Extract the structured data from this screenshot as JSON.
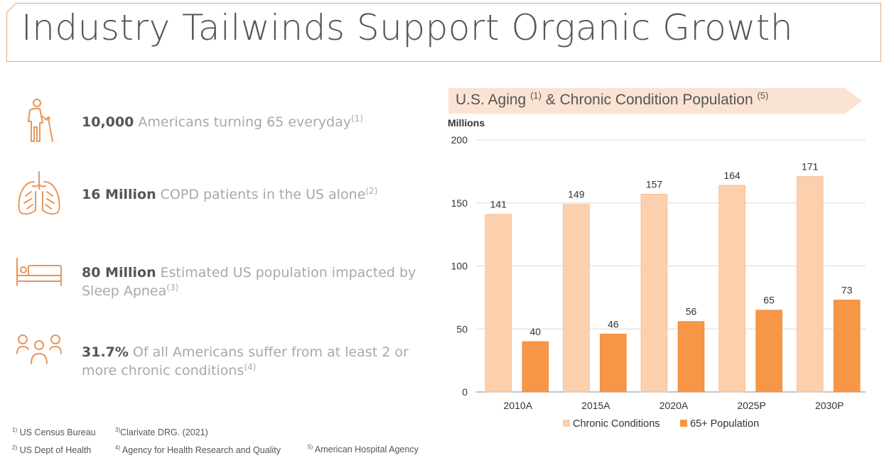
{
  "title": "Industry Tailwinds Support Organic Growth",
  "stats": [
    {
      "icon": "elderly-person-icon",
      "bold": "10,000",
      "text": " Americans turning 65 everyday",
      "ref": "(1)"
    },
    {
      "icon": "lungs-icon",
      "bold": "16 Million",
      "text": " COPD patients in the US alone",
      "ref": "(2)"
    },
    {
      "icon": "bed-icon",
      "bold": "80 Million",
      "text": " Estimated US population impacted by Sleep Apnea",
      "ref": "(3)"
    },
    {
      "icon": "people-group-icon",
      "bold": "31.7%",
      "text": " Of all Americans suffer from at least 2 or more chronic conditions",
      "ref": "(4)"
    }
  ],
  "footnotes": [
    {
      "num": "1)",
      "text": " US Census Bureau"
    },
    {
      "num": "3)",
      "text": "Clarivate DRG. (2021)"
    },
    {
      "num": "2)",
      "text": " US Dept of Health"
    },
    {
      "num": "4)",
      "text": " Agency for Health Research and Quality"
    },
    {
      "num": "5)",
      "text": " American Hospital Agency"
    }
  ],
  "chart_banner": {
    "part1": "U.S. Aging ",
    "ref1": "(1)",
    "part2": " & Chronic Condition Population ",
    "ref2": "(5)"
  },
  "chart_data": {
    "type": "bar",
    "title": "U.S. Aging (1) & Chronic Condition Population (5)",
    "ylabel": "Millions",
    "categories": [
      "2010A",
      "2015A",
      "2020A",
      "2025P",
      "2030P"
    ],
    "series": [
      {
        "name": "Chronic Conditions",
        "values": [
          141,
          149,
          157,
          164,
          171
        ],
        "color": "#fccfad"
      },
      {
        "name": "65+ Population",
        "values": [
          40,
          46,
          56,
          65,
          73
        ],
        "color": "#f79646"
      }
    ],
    "ylim": [
      0,
      200
    ],
    "yticks": [
      "0",
      "50",
      "100",
      "150",
      "200"
    ],
    "grid": true,
    "legend": "bottom"
  },
  "colors": {
    "accent": "#f79646",
    "light": "#fccfad",
    "icon": "#e8965a"
  }
}
